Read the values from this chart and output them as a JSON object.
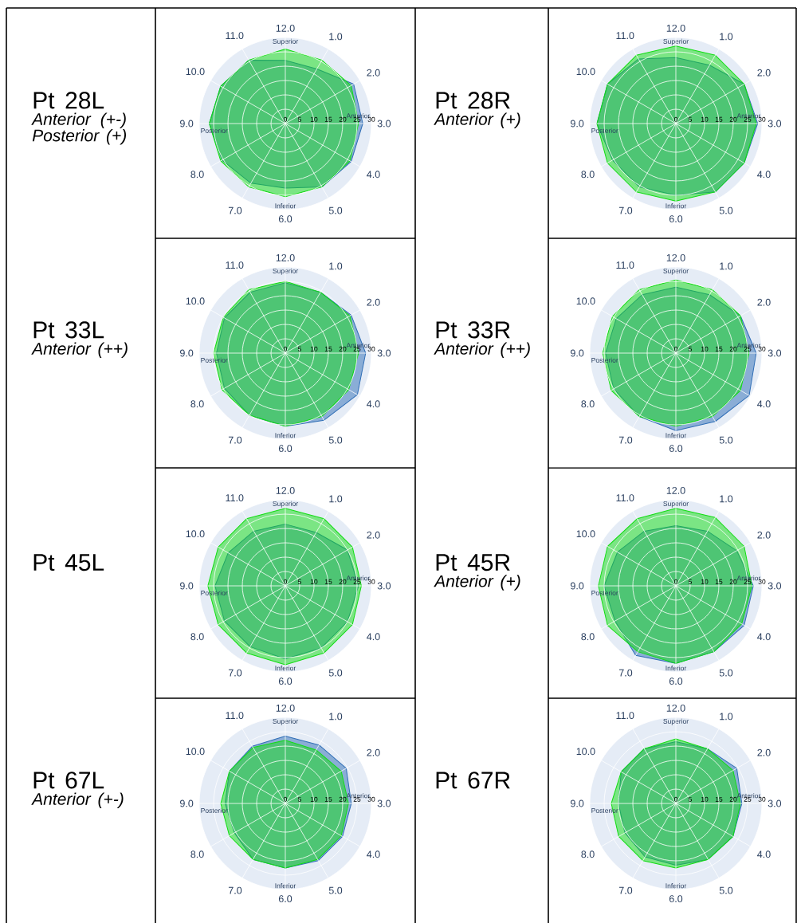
{
  "chart_data": [
    {
      "type": "radar",
      "title": "Pt 28L",
      "subtitle": "Anterior (+-) Posterior (+)",
      "categories": [
        "12.0",
        "1.0",
        "2.0",
        "3.0",
        "4.0",
        "5.0",
        "6.0",
        "7.0",
        "8.0",
        "9.0",
        "10.0",
        "11.0"
      ],
      "series": [
        {
          "color": "#2f6eb6",
          "values": [
            22,
            22,
            27.5,
            27,
            26.5,
            25.5,
            22.5,
            24,
            25.5,
            26.5,
            26,
            25.5
          ]
        },
        {
          "color": "#11dd11",
          "values": [
            26,
            25.5,
            26.5,
            25.5,
            26,
            25.5,
            25.5,
            25.5,
            26,
            26.5,
            26,
            25.5
          ]
        }
      ],
      "ylim": [
        0,
        30
      ],
      "yticks": [
        0,
        5,
        10,
        15,
        20,
        25,
        30
      ],
      "grid": true,
      "annotations": [
        "Superior",
        "Anterior",
        "Inferior",
        "Posterior"
      ]
    },
    {
      "type": "radar",
      "title": "Pt 28R",
      "subtitle": "Anterior (+)",
      "categories": [
        "12.0",
        "1.0",
        "2.0",
        "3.0",
        "4.0",
        "5.0",
        "6.0",
        "7.0",
        "8.0",
        "9.0",
        "10.0",
        "11.0"
      ],
      "series": [
        {
          "color": "#2f6eb6",
          "values": [
            23,
            23.5,
            27.5,
            28.5,
            27.5,
            27.5,
            25,
            25.5,
            25.5,
            27.5,
            27.5,
            26
          ]
        },
        {
          "color": "#11dd11",
          "values": [
            27,
            27.5,
            27.5,
            28,
            27.5,
            27.5,
            27,
            27.5,
            27.5,
            27.5,
            27.5,
            27.5
          ]
        }
      ],
      "ylim": [
        0,
        30
      ],
      "yticks": [
        0,
        5,
        10,
        15,
        20,
        25,
        30
      ],
      "grid": true,
      "annotations": [
        "Superior",
        "Anterior",
        "Inferior",
        "Posterior"
      ]
    },
    {
      "type": "radar",
      "title": "Pt 33L",
      "subtitle": "Anterior (++)",
      "categories": [
        "12.0",
        "1.0",
        "2.0",
        "3.0",
        "4.0",
        "5.0",
        "6.0",
        "7.0",
        "8.0",
        "9.0",
        "10.0",
        "11.0"
      ],
      "series": [
        {
          "color": "#2f6eb6",
          "values": [
            24.5,
            24.5,
            26.5,
            28,
            29,
            27,
            25.5,
            25,
            24.5,
            24,
            24.5,
            24.5
          ]
        },
        {
          "color": "#11dd11",
          "values": [
            25,
            24.5,
            26,
            25.5,
            25.5,
            25.5,
            25.5,
            25,
            25.5,
            25,
            25,
            25.5
          ]
        }
      ],
      "ylim": [
        0,
        30
      ],
      "yticks": [
        0,
        5,
        10,
        15,
        20,
        25,
        30
      ],
      "grid": true,
      "annotations": [
        "Superior",
        "Anterior",
        "Inferior",
        "Posterior"
      ]
    },
    {
      "type": "radar",
      "title": "Pt 33R",
      "subtitle": "Anterior (++)",
      "categories": [
        "12.0",
        "1.0",
        "2.0",
        "3.0",
        "4.0",
        "5.0",
        "6.0",
        "7.0",
        "8.0",
        "9.0",
        "10.0",
        "11.0"
      ],
      "series": [
        {
          "color": "#2f6eb6",
          "values": [
            23,
            23.5,
            26,
            28,
            29.5,
            27.5,
            27,
            25.5,
            25,
            24.5,
            24,
            23.5
          ]
        },
        {
          "color": "#11dd11",
          "values": [
            25.5,
            25.5,
            26,
            25.5,
            26,
            25.5,
            25.5,
            25.5,
            26,
            25.5,
            25.5,
            25.5
          ]
        }
      ],
      "ylim": [
        0,
        30
      ],
      "yticks": [
        0,
        5,
        10,
        15,
        20,
        25,
        30
      ],
      "grid": true,
      "annotations": [
        "Superior",
        "Anterior",
        "Inferior",
        "Posterior"
      ]
    },
    {
      "type": "radar",
      "title": "Pt 45L",
      "categories": [
        "12.0",
        "1.0",
        "2.0",
        "3.0",
        "4.0",
        "5.0",
        "6.0",
        "7.0",
        "8.0",
        "9.0",
        "10.0",
        "11.0"
      ],
      "series": [
        {
          "color": "#2f6eb6",
          "values": [
            21.5,
            21.5,
            25,
            25.5,
            25,
            25,
            25.5,
            24.5,
            24.5,
            24.5,
            23,
            22
          ]
        },
        {
          "color": "#11dd11",
          "values": [
            27,
            27,
            27,
            26.5,
            27,
            27,
            27.5,
            27,
            27,
            27,
            27,
            27
          ]
        }
      ],
      "ylim": [
        0,
        30
      ],
      "yticks": [
        0,
        5,
        10,
        15,
        20,
        25,
        30
      ],
      "grid": true,
      "annotations": [
        "Superior",
        "Anterior",
        "Inferior",
        "Posterior"
      ]
    },
    {
      "type": "radar",
      "title": "Pt 45R",
      "subtitle": "Anterior (+)",
      "categories": [
        "12.0",
        "1.0",
        "2.0",
        "3.0",
        "4.0",
        "5.0",
        "6.0",
        "7.0",
        "8.0",
        "9.0",
        "10.0",
        "11.0"
      ],
      "series": [
        {
          "color": "#2f6eb6",
          "values": [
            21,
            22,
            24.5,
            27,
            27.5,
            26.5,
            27,
            28,
            24.5,
            25,
            23.5,
            22
          ]
        },
        {
          "color": "#11dd11",
          "values": [
            27,
            27.5,
            27.5,
            26.5,
            26.5,
            26.5,
            27,
            26.5,
            27.5,
            27,
            27.5,
            27
          ]
        }
      ],
      "ylim": [
        0,
        30
      ],
      "yticks": [
        0,
        5,
        10,
        15,
        20,
        25,
        30
      ],
      "grid": true,
      "annotations": [
        "Superior",
        "Anterior",
        "Inferior",
        "Posterior"
      ]
    },
    {
      "type": "radar",
      "title": "Pt 67L",
      "subtitle": "Anterior (+-)",
      "categories": [
        "12.0",
        "1.0",
        "2.0",
        "3.0",
        "4.0",
        "5.0",
        "6.0",
        "7.0",
        "8.0",
        "9.0",
        "10.0",
        "11.0"
      ],
      "series": [
        {
          "color": "#2f6eb6",
          "values": [
            23.5,
            23.5,
            24.5,
            23,
            23,
            23,
            22.5,
            22.5,
            20.5,
            21,
            22.5,
            23
          ]
        },
        {
          "color": "#11dd11",
          "values": [
            22,
            21.5,
            22.5,
            22,
            22.5,
            22.5,
            22.5,
            22.5,
            22.5,
            22.5,
            22.5,
            22.5
          ]
        }
      ],
      "ylim": [
        0,
        30
      ],
      "yticks": [
        0,
        5,
        10,
        15,
        20,
        25,
        30
      ],
      "grid": true,
      "annotations": [
        "Superior",
        "Anterior",
        "Inferior",
        "Posterior"
      ]
    },
    {
      "type": "radar",
      "title": "Pt 67R",
      "categories": [
        "12.0",
        "1.0",
        "2.0",
        "3.0",
        "4.0",
        "5.0",
        "6.0",
        "7.0",
        "8.0",
        "9.0",
        "10.0",
        "11.0"
      ],
      "series": [
        {
          "color": "#2f6eb6",
          "values": [
            21.5,
            22,
            24.5,
            23,
            23,
            22.5,
            21.5,
            21.5,
            20.5,
            20,
            22,
            22
          ]
        },
        {
          "color": "#11dd11",
          "values": [
            22.5,
            22,
            23,
            22.5,
            23,
            22.5,
            22.5,
            23,
            23,
            22.5,
            22,
            22
          ]
        }
      ],
      "ylim": [
        0,
        30
      ],
      "yticks": [
        0,
        5,
        10,
        15,
        20,
        25,
        30
      ],
      "grid": true,
      "annotations": [
        "Superior",
        "Anterior",
        "Inferior",
        "Posterior"
      ]
    }
  ]
}
